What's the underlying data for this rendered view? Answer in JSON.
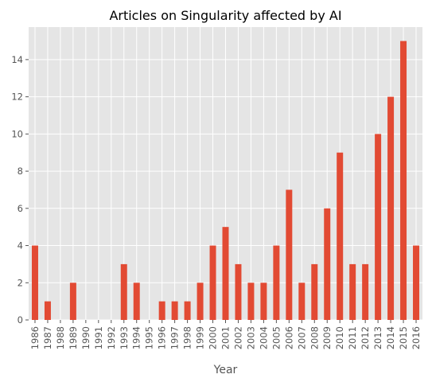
{
  "chart_data": {
    "type": "bar",
    "title": "Articles on Singularity affected by AI",
    "xlabel": "Year",
    "ylabel": "",
    "categories": [
      "1986",
      "1987",
      "1988",
      "1989",
      "1990",
      "1991",
      "1992",
      "1993",
      "1994",
      "1995",
      "1996",
      "1997",
      "1998",
      "1999",
      "2000",
      "2001",
      "2002",
      "2003",
      "2004",
      "2005",
      "2006",
      "2007",
      "2008",
      "2009",
      "2010",
      "2011",
      "2012",
      "2013",
      "2014",
      "2015",
      "2016"
    ],
    "values": [
      4,
      1,
      0,
      2,
      0,
      0,
      0,
      3,
      2,
      0,
      1,
      1,
      1,
      2,
      4,
      5,
      3,
      2,
      2,
      4,
      7,
      2,
      3,
      6,
      9,
      3,
      3,
      10,
      12,
      15,
      4
    ],
    "ylim": [
      0,
      15.75
    ],
    "yticks": [
      0,
      2,
      4,
      6,
      8,
      10,
      12,
      14
    ],
    "grid": true,
    "legend": "none",
    "colors": {
      "bar": "#E24A33",
      "plot_background": "#E5E5E5",
      "grid": "#FFFFFF",
      "tick_text": "#555555",
      "title_text": "#000000"
    }
  }
}
